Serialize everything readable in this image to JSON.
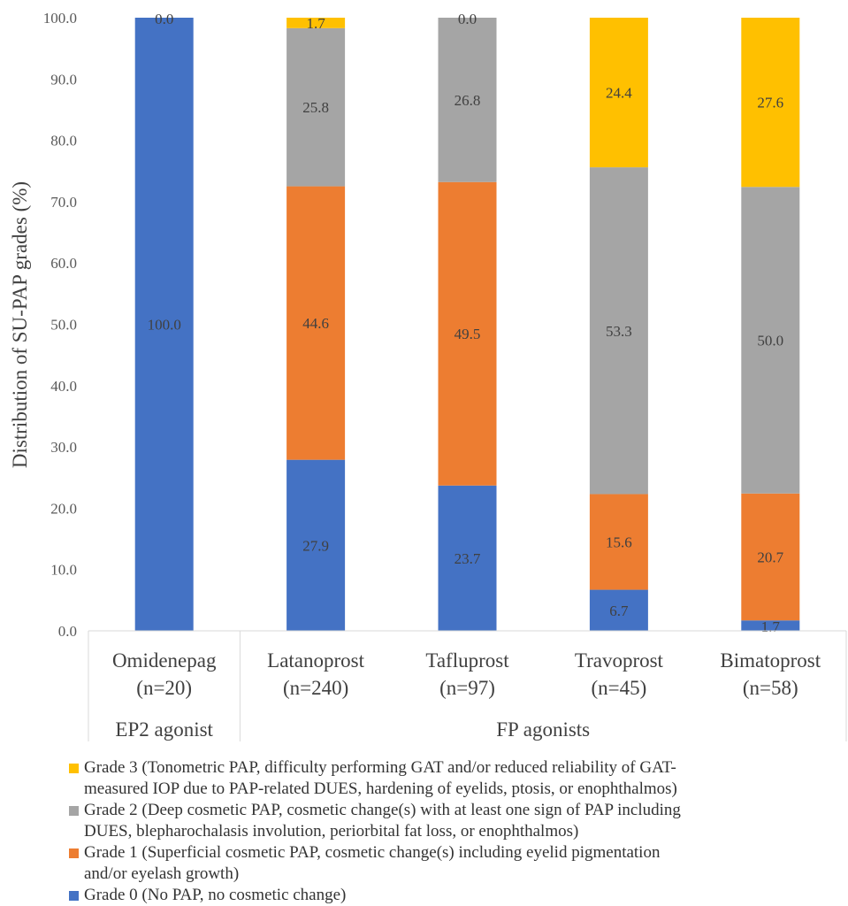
{
  "chart_data": {
    "type": "bar",
    "stacked": true,
    "ylabel": "Distribution of SU-PAP grades (%)",
    "ylim": [
      0,
      100
    ],
    "yticks": [
      "0.0",
      "10.0",
      "20.0",
      "30.0",
      "40.0",
      "50.0",
      "60.0",
      "70.0",
      "80.0",
      "90.0",
      "100.0"
    ],
    "categories": [
      {
        "name": "Omidenepag",
        "n": "(n=20)"
      },
      {
        "name": "Latanoprost",
        "n": "(n=240)"
      },
      {
        "name": "Tafluprost",
        "n": "(n=97)"
      },
      {
        "name": "Travoprost",
        "n": "(n=45)"
      },
      {
        "name": "Bimatoprost",
        "n": "(n=58)"
      }
    ],
    "groups": [
      {
        "label": "EP2 agonist",
        "span": [
          0,
          0
        ]
      },
      {
        "label": "FP agonists",
        "span": [
          1,
          4
        ]
      }
    ],
    "series": [
      {
        "name": "Grade 0 (No PAP, no cosmetic change)",
        "color": "#4472C4",
        "values": [
          100.0,
          27.9,
          23.7,
          6.7,
          1.7
        ],
        "labels": [
          "100.0",
          "27.9",
          "23.7",
          "6.7",
          "1.7"
        ]
      },
      {
        "name": "Grade 1 (Superficial cosmetic PAP, cosmetic change(s) including eyelid pigmentation and/or eyelash growth)",
        "color": "#ED7D31",
        "values": [
          0,
          44.6,
          49.5,
          15.6,
          20.7
        ],
        "labels": [
          "",
          "44.6",
          "49.5",
          "15.6",
          "20.7"
        ]
      },
      {
        "name": "Grade 2 (Deep cosmetic PAP, cosmetic change(s) with at least one sign of PAP including DUES, blepharochalasis involution, periorbital fat loss, or enophthalmos)",
        "color": "#A5A5A5",
        "values": [
          0,
          25.8,
          26.8,
          53.3,
          50.0
        ],
        "labels": [
          "",
          "25.8",
          "26.8",
          "53.3",
          "50.0"
        ]
      },
      {
        "name": "Grade 3 (Tonometric PAP, difficulty performing GAT and/or reduced reliability of GAT-measured IOP due to PAP-related DUES, hardening of eyelids, ptosis, or enophthalmos)",
        "color": "#FFC000",
        "values": [
          0.0,
          1.7,
          0.0,
          24.4,
          27.6
        ],
        "labels": [
          "0.0",
          "1.7",
          "0.0",
          "24.4",
          "27.6"
        ]
      }
    ],
    "legend_order": [
      3,
      2,
      1,
      0
    ],
    "legend_position": "bottom",
    "grid": false
  },
  "legend": [
    {
      "line1": "Grade 3 (Tonometric PAP, difficulty performing GAT and/or reduced reliability of GAT-",
      "line2": "measured IOP due to PAP-related DUES, hardening of eyelids, ptosis, or enophthalmos)",
      "color": "#FFC000"
    },
    {
      "line1": "Grade 2 (Deep cosmetic PAP, cosmetic change(s) with at least one sign of PAP including",
      "line2": "DUES, blepharochalasis involution, periorbital fat loss, or enophthalmos)",
      "color": "#A5A5A5"
    },
    {
      "line1": "Grade 1 (Superficial cosmetic PAP, cosmetic change(s) including eyelid pigmentation",
      "line2": "and/or eyelash growth)",
      "color": "#ED7D31"
    },
    {
      "line1": "Grade 0 (No PAP, no cosmetic change)",
      "line2": "",
      "color": "#4472C4"
    }
  ]
}
